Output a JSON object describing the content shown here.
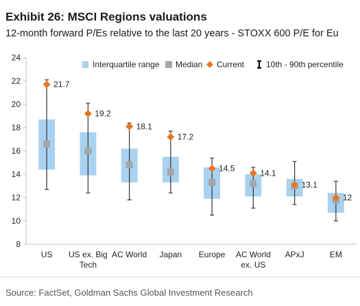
{
  "chart_data": {
    "type": "range-bar",
    "title": "Exhibit 26: MSCI Regions valuations",
    "subtitle": "12-month forward P/Es relative to the last 20 years - STOXX 600 P/E for Eu",
    "source": "Source: FactSet, Goldman Sachs Global Investment Research",
    "categories": [
      "US",
      "US ex. Big\nTech",
      "AC World",
      "Japan",
      "Europe",
      "AC World\nex. US",
      "APxJ",
      "EM"
    ],
    "ylim": [
      8,
      24
    ],
    "yticks": [
      8,
      10,
      12,
      14,
      16,
      18,
      20,
      22,
      24
    ],
    "series": [
      {
        "name": "Interquartile range",
        "color": "#a9d2f0",
        "low": [
          14.4,
          13.9,
          13.3,
          13.3,
          11.9,
          12.1,
          12.1,
          10.7
        ],
        "high": [
          18.7,
          17.6,
          16.2,
          15.5,
          14.6,
          14.0,
          13.6,
          12.4
        ]
      },
      {
        "name": "Median",
        "color": "#a6a6a6",
        "values": [
          16.6,
          16.0,
          14.8,
          14.2,
          13.3,
          13.2,
          13.0,
          11.8
        ]
      },
      {
        "name": "Current",
        "color": "#e87722",
        "values": [
          21.7,
          19.2,
          18.1,
          17.2,
          14.5,
          14.1,
          13.1,
          12.0
        ]
      },
      {
        "name": "10th - 90th percentile",
        "color": "#333333",
        "low": [
          12.7,
          12.4,
          11.8,
          12.4,
          10.5,
          11.1,
          11.4,
          10.0
        ],
        "high": [
          22.1,
          20.1,
          18.4,
          17.7,
          15.4,
          14.6,
          15.1,
          13.4
        ]
      }
    ]
  }
}
